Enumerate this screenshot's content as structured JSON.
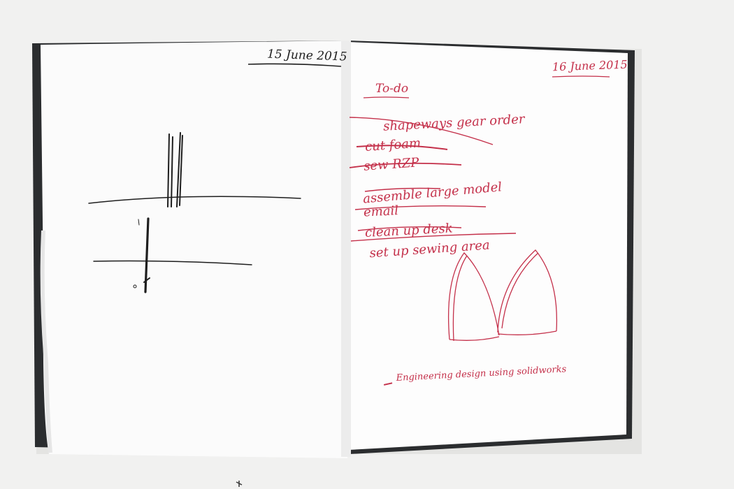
{
  "left_page": {
    "date": "15 June 2015"
  },
  "right_page": {
    "date": "16 June 2015",
    "heading": "To-do",
    "todo_items": [
      "shapeways gear order",
      "cut foam",
      "sew RZP",
      "assemble large model",
      "email",
      "clean up desk",
      "set up sewing area"
    ],
    "note": "Engineering design using solidworks"
  },
  "colors": {
    "background": "#f1f1f0",
    "cover": "#2b2d2f",
    "paper": "#fbfbfb",
    "ink_black": "#1e1e1e",
    "ink_red": "#c4304a"
  }
}
